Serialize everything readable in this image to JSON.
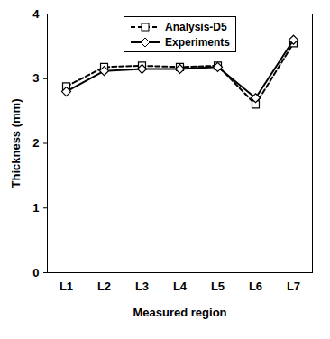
{
  "chart_data": {
    "type": "line",
    "x_label": "Measured region",
    "y_label": "Thickness (mm)",
    "categories": [
      "L1",
      "L2",
      "L3",
      "L4",
      "L5",
      "L6",
      "L7"
    ],
    "series": [
      {
        "name": "Analysis-D5",
        "color": "#000000",
        "marker": "square",
        "line_style": "dashed",
        "values": [
          2.88,
          3.18,
          3.2,
          3.18,
          3.2,
          2.6,
          3.55
        ]
      },
      {
        "name": "Experiments",
        "color": "#000000",
        "marker": "diamond",
        "line_style": "solid",
        "values": [
          2.8,
          3.12,
          3.15,
          3.15,
          3.18,
          2.7,
          3.6
        ]
      }
    ],
    "ylim": [
      0,
      4
    ],
    "yticks": [
      0,
      1,
      2,
      3,
      4
    ],
    "grid": false,
    "legend": "top"
  }
}
